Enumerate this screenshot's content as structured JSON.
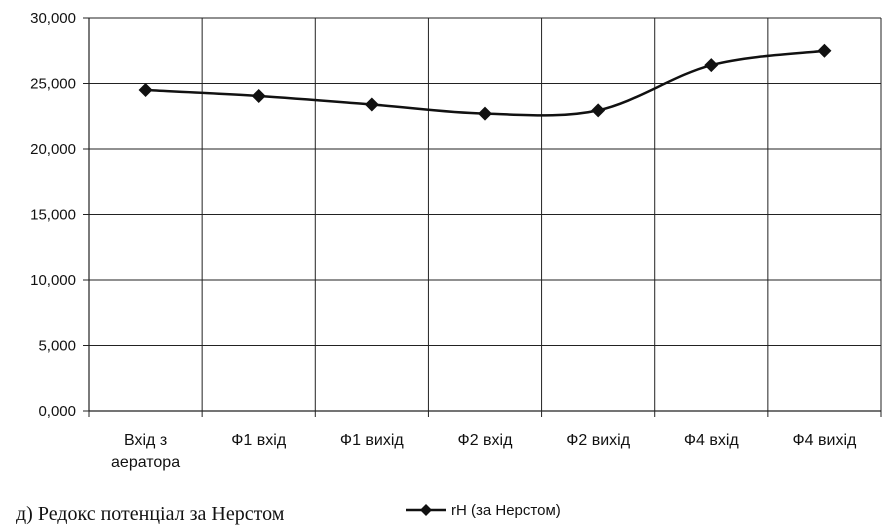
{
  "chart_data": {
    "type": "line",
    "caption": "д) Редокс потенціал за Нерстом",
    "categories": [
      [
        "Вхід з",
        "аератора"
      ],
      [
        "Ф1 вхід"
      ],
      [
        "Ф1 вихід"
      ],
      [
        "Ф2 вхід"
      ],
      [
        "Ф2 вихід"
      ],
      [
        "Ф4 вхід"
      ],
      [
        "Ф4 вихід"
      ]
    ],
    "series": [
      {
        "name": "rH (за Нерстом)",
        "values": [
          24.5,
          24.05,
          23.4,
          22.7,
          22.95,
          26.4,
          27.5
        ]
      }
    ],
    "yticks": [
      "0,000",
      "5,000",
      "10,000",
      "15,000",
      "20,000",
      "25,000",
      "30,000"
    ],
    "ylim": [
      0,
      30
    ],
    "grid": true,
    "smoothed": true,
    "marker": "diamond",
    "legend_position": "bottom"
  }
}
